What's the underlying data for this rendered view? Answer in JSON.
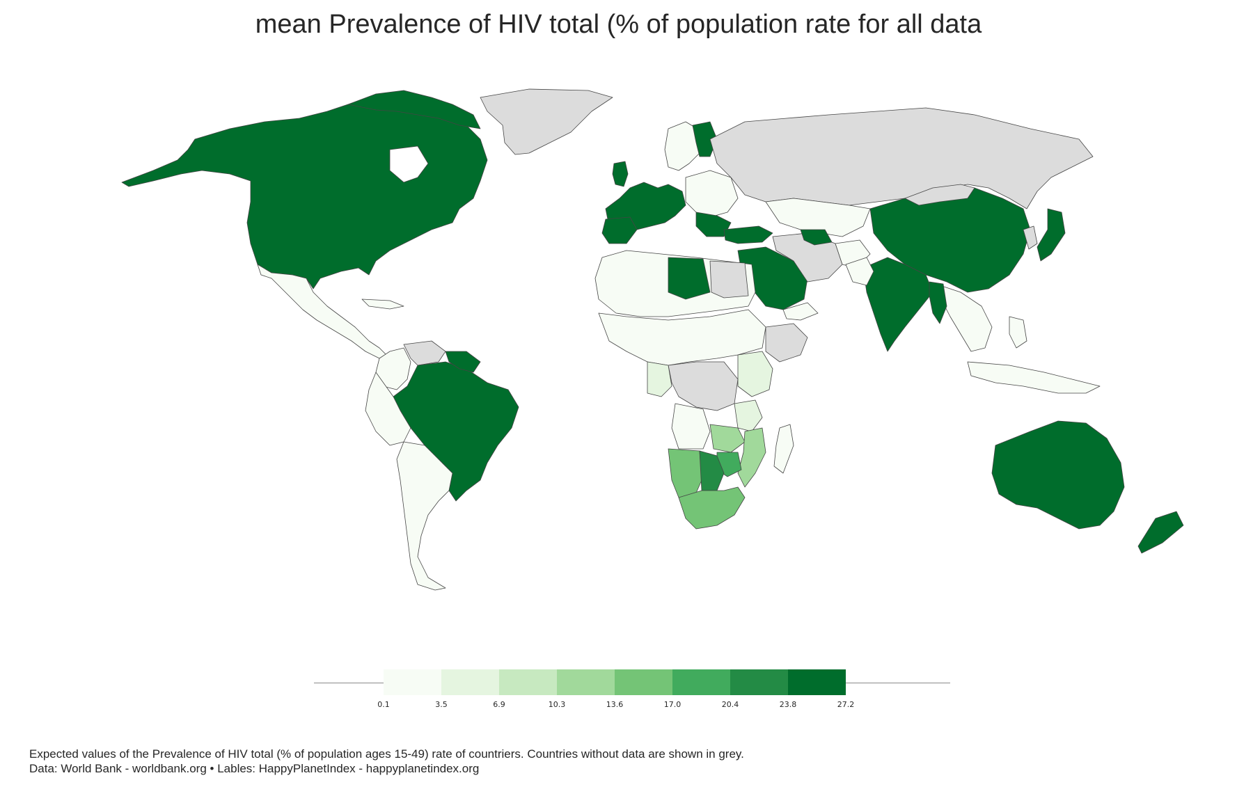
{
  "title": "mean Prevalence of HIV total (% of population rate for all data",
  "colors": {
    "no_data": "#dcdcdc",
    "border": "#444444",
    "scale": [
      "#f7fcf5",
      "#e5f5e0",
      "#c7e9c0",
      "#a1d99b",
      "#74c476",
      "#41ab5d",
      "#238b45",
      "#006d2c"
    ]
  },
  "legend": {
    "ticks": [
      "0.1",
      "3.5",
      "6.9",
      "10.3",
      "13.6",
      "17.0",
      "20.4",
      "23.8",
      "27.2"
    ]
  },
  "footer": {
    "line1": "Expected values of the Prevalence of HIV total (% of population ages 15-49) rate of countriers. Countries without data are shown in grey.",
    "line2": "Data: World Bank - worldbank.org • Lables: HappyPlanetIndex - happyplanetindex.org"
  }
}
